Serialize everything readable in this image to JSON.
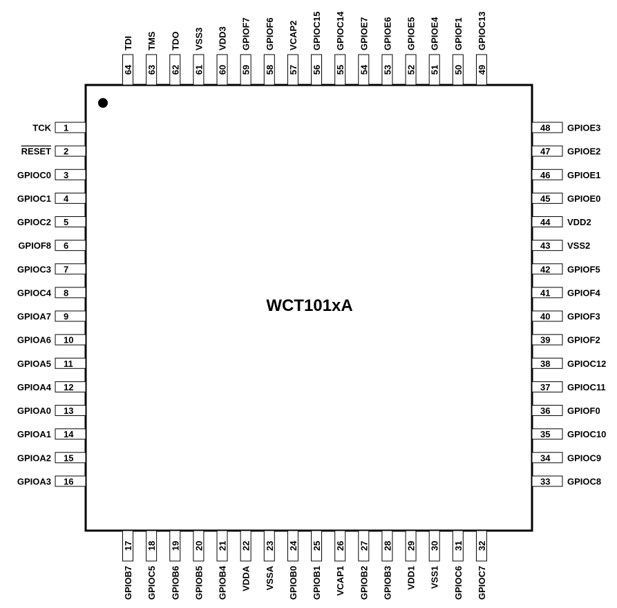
{
  "chip": {
    "name": "WCT101xA",
    "colors": {
      "outline": "#000000",
      "background": "#ffffff",
      "text": "#000000"
    }
  },
  "pins": {
    "left": [
      {
        "num": "1",
        "label": "TCK"
      },
      {
        "num": "2",
        "label": "RESET",
        "overline": true
      },
      {
        "num": "3",
        "label": "GPIOC0"
      },
      {
        "num": "4",
        "label": "GPIOC1"
      },
      {
        "num": "5",
        "label": "GPIOC2"
      },
      {
        "num": "6",
        "label": "GPIOF8"
      },
      {
        "num": "7",
        "label": "GPIOC3"
      },
      {
        "num": "8",
        "label": "GPIOC4"
      },
      {
        "num": "9",
        "label": "GPIOA7"
      },
      {
        "num": "10",
        "label": "GPIOA6"
      },
      {
        "num": "11",
        "label": "GPIOA5"
      },
      {
        "num": "12",
        "label": "GPIOA4"
      },
      {
        "num": "13",
        "label": "GPIOA0"
      },
      {
        "num": "14",
        "label": "GPIOA1"
      },
      {
        "num": "15",
        "label": "GPIOA2"
      },
      {
        "num": "16",
        "label": "GPIOA3"
      }
    ],
    "bottom": [
      {
        "num": "17",
        "label": "GPIOB7"
      },
      {
        "num": "18",
        "label": "GPIOC5"
      },
      {
        "num": "19",
        "label": "GPIOB6"
      },
      {
        "num": "20",
        "label": "GPIOB5"
      },
      {
        "num": "21",
        "label": "GPIOB4"
      },
      {
        "num": "22",
        "label": "VDDA"
      },
      {
        "num": "23",
        "label": "VSSA"
      },
      {
        "num": "24",
        "label": "GPIOB0"
      },
      {
        "num": "25",
        "label": "GPIOB1"
      },
      {
        "num": "26",
        "label": "VCAP1"
      },
      {
        "num": "27",
        "label": "GPIOB2"
      },
      {
        "num": "28",
        "label": "GPIOB3"
      },
      {
        "num": "29",
        "label": "VDD1"
      },
      {
        "num": "30",
        "label": "VSS1"
      },
      {
        "num": "31",
        "label": "GPIOC6"
      },
      {
        "num": "32",
        "label": "GPIOC7"
      }
    ],
    "right": [
      {
        "num": "48",
        "label": "GPIOE3"
      },
      {
        "num": "47",
        "label": "GPIOE2"
      },
      {
        "num": "46",
        "label": "GPIOE1"
      },
      {
        "num": "45",
        "label": "GPIOE0"
      },
      {
        "num": "44",
        "label": "VDD2"
      },
      {
        "num": "43",
        "label": "VSS2"
      },
      {
        "num": "42",
        "label": "GPIOF5"
      },
      {
        "num": "41",
        "label": "GPIOF4"
      },
      {
        "num": "40",
        "label": "GPIOF3"
      },
      {
        "num": "39",
        "label": "GPIOF2"
      },
      {
        "num": "38",
        "label": "GPIOC12"
      },
      {
        "num": "37",
        "label": "GPIOC11"
      },
      {
        "num": "36",
        "label": "GPIOF0"
      },
      {
        "num": "35",
        "label": "GPIOC10"
      },
      {
        "num": "34",
        "label": "GPIOC9"
      },
      {
        "num": "33",
        "label": "GPIOC8"
      }
    ],
    "top": [
      {
        "num": "64",
        "label": "TDI"
      },
      {
        "num": "63",
        "label": "TMS"
      },
      {
        "num": "62",
        "label": "TDO"
      },
      {
        "num": "61",
        "label": "VSS3"
      },
      {
        "num": "60",
        "label": "VDD3"
      },
      {
        "num": "59",
        "label": "GPIOF7"
      },
      {
        "num": "58",
        "label": "GPIOF6"
      },
      {
        "num": "57",
        "label": "VCAP2"
      },
      {
        "num": "56",
        "label": "GPIOC15"
      },
      {
        "num": "55",
        "label": "GPIOC14"
      },
      {
        "num": "54",
        "label": "GPIOE7"
      },
      {
        "num": "53",
        "label": "GPIOE6"
      },
      {
        "num": "52",
        "label": "GPIOE5"
      },
      {
        "num": "51",
        "label": "GPIOE4"
      },
      {
        "num": "50",
        "label": "GPIOF1"
      },
      {
        "num": "49",
        "label": "GPIOC13"
      }
    ]
  }
}
